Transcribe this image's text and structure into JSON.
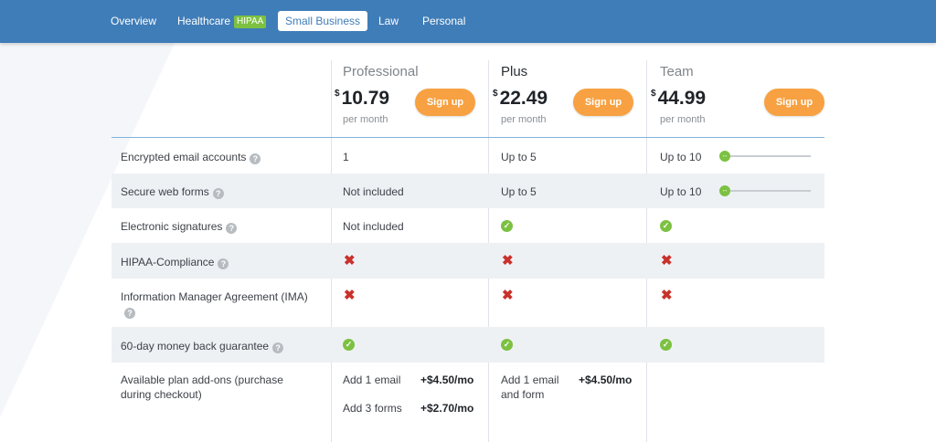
{
  "nav": {
    "overview": "Overview",
    "healthcare": "Healthcare",
    "hipaa_badge": "HIPAA",
    "small_business": "Small Business",
    "law": "Law",
    "personal": "Personal"
  },
  "plans": [
    {
      "name": "Professional",
      "currency": "$",
      "price": "10.79",
      "period": "per month",
      "cta": "Sign up"
    },
    {
      "name": "Plus",
      "currency": "$",
      "price": "22.49",
      "period": "per month",
      "cta": "Sign up"
    },
    {
      "name": "Team",
      "currency": "$",
      "price": "44.99",
      "period": "per month",
      "cta": "Sign up"
    }
  ],
  "features": {
    "encrypted_email": {
      "label": "Encrypted email accounts",
      "professional": "1",
      "plus": "Up to 5",
      "team": "Up to 10"
    },
    "web_forms": {
      "label": "Secure web forms",
      "professional": "Not included",
      "plus": "Up to 5",
      "team": "Up to 10"
    },
    "e_signatures": {
      "label": "Electronic signatures",
      "professional": "Not included"
    },
    "hipaa": {
      "label": "HIPAA-Compliance"
    },
    "ima": {
      "label": "Information Manager Agreement (IMA)"
    },
    "money_back": {
      "label": "60-day money back guarantee"
    },
    "addons": {
      "label_line1": "Available plan add-ons (purchase",
      "label_line2": "during checkout)",
      "professional": [
        {
          "name": "Add 1 email",
          "price": "+$4.50/mo"
        },
        {
          "name": "Add 3 forms",
          "price": "+$2.70/mo"
        }
      ],
      "plus": {
        "name_line1": "Add 1 email",
        "name_line2": "and form",
        "price": "+$4.50/mo"
      }
    }
  },
  "icons": {
    "help": "?",
    "check": "✓",
    "cross": "✖",
    "slider_thumb": "↔"
  },
  "colors": {
    "nav_bg": "#3f7db8",
    "accent_orange": "#f7a142",
    "check_green": "#7cc142",
    "cross_red": "#c9312b"
  }
}
